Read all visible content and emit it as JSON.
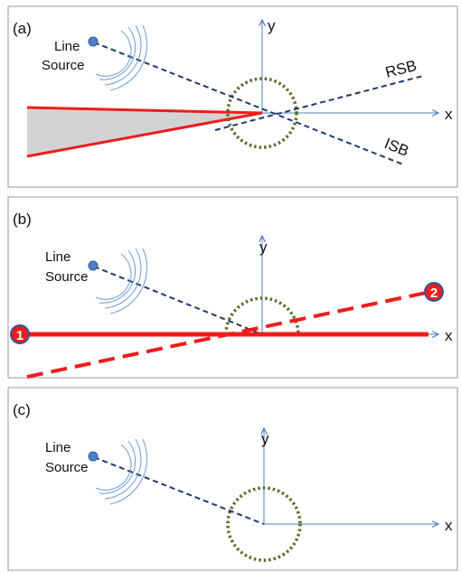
{
  "colors": {
    "frame": "#9a9a9a",
    "axis": "#4f7fc4",
    "source": "#4f7fc4",
    "source_stroke": "#2e5a9a",
    "dashed_ray": "#1f3a6b",
    "circle": "#5c6b2e",
    "red": "#ee1c1c",
    "shade": "#d3d3d3",
    "waves": "#6c9bd4",
    "marker_fill": "#ee1c1c",
    "marker_ring": "#2e5a9a"
  },
  "panels": [
    {
      "label": "(a)",
      "source_line1": "Line",
      "source_line2": "Source",
      "y_axis": "y",
      "x_axis": "x",
      "rsb": "RSB",
      "isb": "ISB"
    },
    {
      "label": "(b)",
      "source_line1": "Line",
      "source_line2": "Source",
      "y_axis": "y",
      "x_axis": "x",
      "marker1": "1",
      "marker2": "2"
    },
    {
      "label": "(c)",
      "source_line1": "Line",
      "source_line2": "Source",
      "y_axis": "y",
      "x_axis": "x"
    }
  ]
}
